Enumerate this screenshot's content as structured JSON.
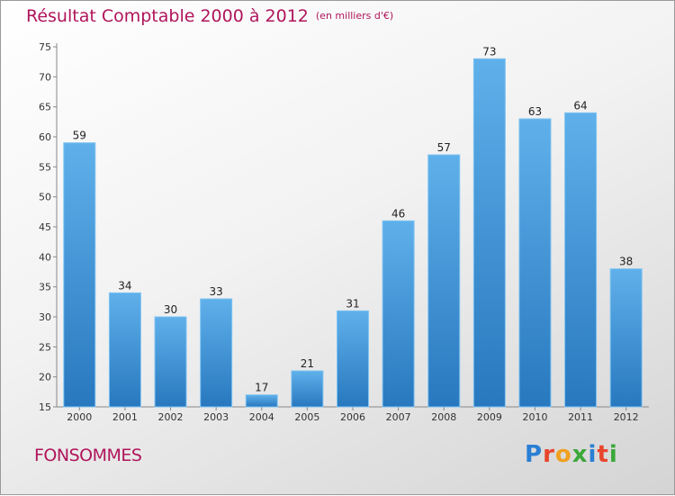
{
  "chart_data": {
    "type": "bar",
    "title": "Résultat Comptable 2000 à 2012",
    "subtitle": "(en milliers d'€)",
    "categories": [
      "2000",
      "2001",
      "2002",
      "2003",
      "2004",
      "2005",
      "2006",
      "2007",
      "2008",
      "2009",
      "2010",
      "2011",
      "2012"
    ],
    "values": [
      59,
      34,
      30,
      33,
      17,
      21,
      31,
      46,
      57,
      73,
      63,
      64,
      38
    ],
    "ylim": [
      15,
      75
    ],
    "yticks": [
      15,
      20,
      25,
      30,
      35,
      40,
      45,
      50,
      55,
      60,
      65,
      70,
      75
    ],
    "grid": false,
    "bar_color": "#4a9fe0"
  },
  "footer": {
    "place": "FONSOMMES",
    "brand_letters": [
      "P",
      "r",
      "o",
      "x",
      "i",
      "t",
      "i"
    ],
    "brand_colors": [
      "#2a7fd4",
      "#e8452c",
      "#f0a020",
      "#3aa83a",
      "#2a7fd4",
      "#e8452c",
      "#3aa83a"
    ]
  }
}
